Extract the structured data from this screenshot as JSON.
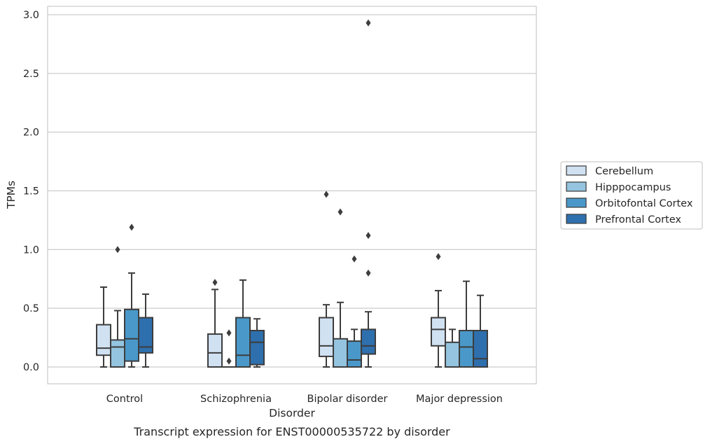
{
  "chart_data": {
    "type": "box",
    "xlabel": "Disorder",
    "ylabel": "TPMs",
    "caption": "Transcript expression for ENST00000535722 by disorder",
    "categories": [
      "Control",
      "Schizophrenia",
      "Bipolar disorder",
      "Major depression"
    ],
    "ylim": [
      -0.14,
      3.08
    ],
    "yticks": [
      0.0,
      0.5,
      1.0,
      1.5,
      2.0,
      2.5,
      3.0
    ],
    "ytick_labels": [
      "0.0",
      "0.5",
      "1.0",
      "1.5",
      "2.0",
      "2.5",
      "3.0"
    ],
    "grid": "horizontal",
    "legend_position": "right",
    "series": [
      {
        "name": "Cerebellum",
        "color": "#d0e1f2",
        "boxes": [
          {
            "whisker_low": 0.0,
            "q1": 0.1,
            "median": 0.16,
            "q3": 0.36,
            "whisker_high": 0.68,
            "outliers": []
          },
          {
            "whisker_low": 0.0,
            "q1": 0.0,
            "median": 0.12,
            "q3": 0.28,
            "whisker_high": 0.66,
            "outliers": [
              0.72
            ]
          },
          {
            "whisker_low": 0.0,
            "q1": 0.09,
            "median": 0.18,
            "q3": 0.42,
            "whisker_high": 0.53,
            "outliers": [
              1.47
            ]
          },
          {
            "whisker_low": 0.0,
            "q1": 0.18,
            "median": 0.32,
            "q3": 0.42,
            "whisker_high": 0.65,
            "outliers": [
              0.94
            ]
          }
        ]
      },
      {
        "name": "Hipppocampus",
        "color": "#94c4df",
        "boxes": [
          {
            "whisker_low": 0.0,
            "q1": 0.0,
            "median": 0.17,
            "q3": 0.23,
            "whisker_high": 0.48,
            "outliers": [
              1.0
            ]
          },
          {
            "whisker_low": 0.0,
            "q1": 0.0,
            "median": 0.0,
            "q3": 0.0,
            "whisker_high": 0.0,
            "outliers": [
              0.05,
              0.29
            ]
          },
          {
            "whisker_low": 0.0,
            "q1": 0.0,
            "median": 0.0,
            "q3": 0.24,
            "whisker_high": 0.55,
            "outliers": [
              1.32
            ]
          },
          {
            "whisker_low": 0.0,
            "q1": 0.0,
            "median": 0.0,
            "q3": 0.21,
            "whisker_high": 0.32,
            "outliers": []
          }
        ]
      },
      {
        "name": "Orbitofontal Cortex",
        "color": "#4a98c9",
        "boxes": [
          {
            "whisker_low": 0.0,
            "q1": 0.05,
            "median": 0.24,
            "q3": 0.49,
            "whisker_high": 0.8,
            "outliers": [
              1.19
            ]
          },
          {
            "whisker_low": 0.0,
            "q1": 0.0,
            "median": 0.1,
            "q3": 0.42,
            "whisker_high": 0.74,
            "outliers": []
          },
          {
            "whisker_low": 0.0,
            "q1": 0.0,
            "median": 0.06,
            "q3": 0.22,
            "whisker_high": 0.32,
            "outliers": [
              0.92
            ]
          },
          {
            "whisker_low": 0.0,
            "q1": 0.0,
            "median": 0.17,
            "q3": 0.31,
            "whisker_high": 0.73,
            "outliers": []
          }
        ]
      },
      {
        "name": "Prefrontal Cortex",
        "color": "#2e6fad",
        "boxes": [
          {
            "whisker_low": 0.0,
            "q1": 0.12,
            "median": 0.17,
            "q3": 0.42,
            "whisker_high": 0.62,
            "outliers": []
          },
          {
            "whisker_low": 0.0,
            "q1": 0.02,
            "median": 0.21,
            "q3": 0.31,
            "whisker_high": 0.41,
            "outliers": []
          },
          {
            "whisker_low": 0.0,
            "q1": 0.11,
            "median": 0.18,
            "q3": 0.32,
            "whisker_high": 0.47,
            "outliers": [
              0.8,
              1.12,
              2.93
            ]
          },
          {
            "whisker_low": 0.0,
            "q1": 0.0,
            "median": 0.07,
            "q3": 0.31,
            "whisker_high": 0.61,
            "outliers": []
          }
        ]
      }
    ]
  }
}
